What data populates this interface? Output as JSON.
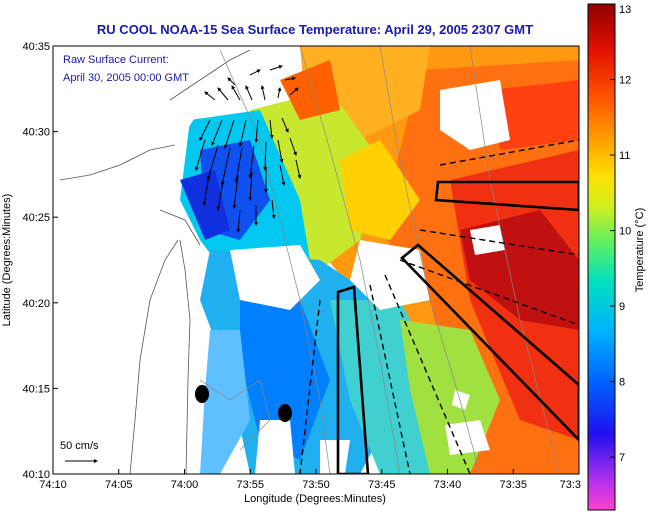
{
  "chart_data": {
    "type": "heatmap",
    "title": "RU COOL  NOAA-15  Sea Surface Temperature:  April 29, 2005 2307 GMT",
    "xlabel": "Longitude (Degrees:Minutes)",
    "ylabel": "Latitude (Degrees:Minutes)",
    "x_ticks": [
      "74:10",
      "74:05",
      "74:00",
      "73:55",
      "73:50",
      "73:45",
      "73:40",
      "73:35",
      "73:3"
    ],
    "y_ticks": [
      "40:35",
      "40:30",
      "40:25",
      "40:20",
      "40:15",
      "40:10"
    ],
    "x_range_minutes_west": [
      70,
      30
    ],
    "y_range_minutes_north": [
      10,
      35
    ],
    "colorbar": {
      "label": "Temperature (°C)",
      "ticks": [
        "13",
        "12",
        "11",
        "10",
        "9",
        "8",
        "7"
      ],
      "range": [
        6.3,
        13
      ]
    },
    "annotations": {
      "current_label": "Raw Surface Current:",
      "current_time": "April 30, 2005 00:00 GMT",
      "scale_label": "50 cm/s"
    },
    "colors": {
      "title": "#1a1aa8",
      "cold": "#1030e0",
      "warm": "#e03010"
    }
  }
}
